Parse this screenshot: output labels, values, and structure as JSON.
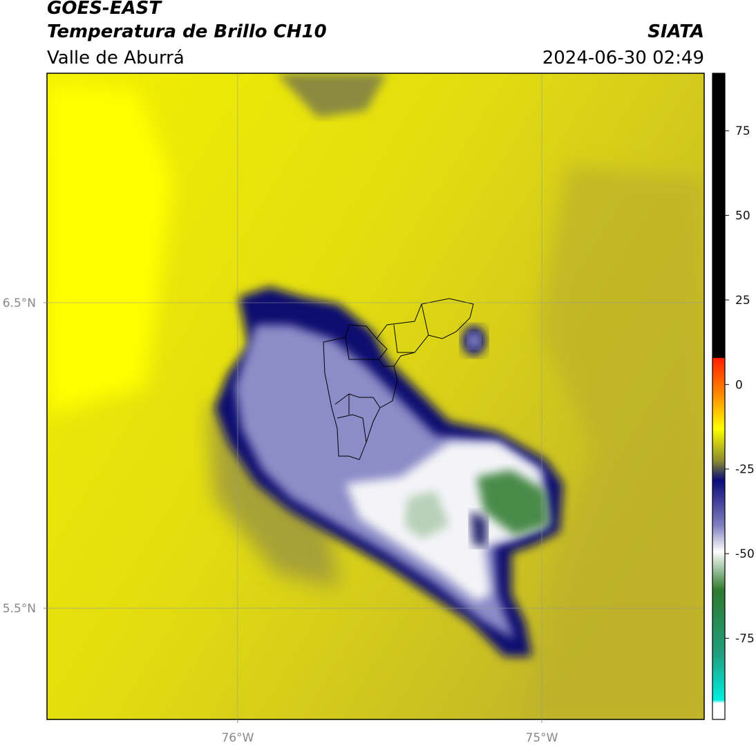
{
  "header": {
    "satellite": "GOES-EAST",
    "product": "Temperatura de Brillo CH10",
    "source": "SIATA",
    "region": "Valle de Aburrá",
    "datetime": "2024-06-30 02:49"
  },
  "map": {
    "lonlim": [
      -76.627,
      -74.466
    ],
    "latlim": [
      5.136,
      7.251
    ],
    "lon_ticks": [
      {
        "value": -76,
        "label": "76°W"
      },
      {
        "value": -75,
        "label": "75°W"
      }
    ],
    "lat_ticks": [
      {
        "value": 6.5,
        "label": "6.5°N"
      },
      {
        "value": 5.5,
        "label": "5.5°N"
      }
    ],
    "grid": true
  },
  "colorbar": {
    "clim": [
      -99,
      92
    ],
    "ticks": [
      75,
      50,
      25,
      0,
      -25,
      -50,
      -75
    ]
  }
}
